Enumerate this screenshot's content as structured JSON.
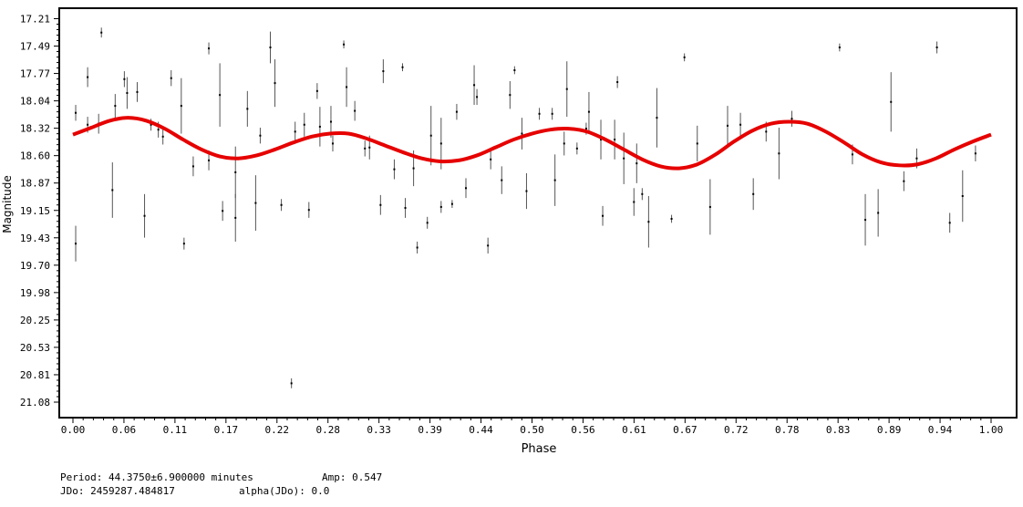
{
  "chart_data": {
    "type": "scatter",
    "xlabel": "Phase",
    "ylabel": "Magnitude",
    "xlim": [
      0.0,
      1.0
    ],
    "ylim": [
      17.21,
      21.08
    ],
    "y_inverted": true,
    "xticks": [
      "0.00",
      "0.06",
      "0.11",
      "0.17",
      "0.22",
      "0.28",
      "0.33",
      "0.39",
      "0.44",
      "0.50",
      "0.56",
      "0.61",
      "0.67",
      "0.72",
      "0.78",
      "0.83",
      "0.89",
      "0.94",
      "1.00"
    ],
    "yticks": [
      "17.21",
      "17.49",
      "17.77",
      "18.04",
      "18.32",
      "18.60",
      "18.87",
      "19.15",
      "19.43",
      "19.70",
      "19.98",
      "20.25",
      "20.53",
      "20.81",
      "21.08"
    ],
    "point_color": "#000000",
    "fit_color": "#e60000",
    "points": [
      {
        "x": 0.003,
        "y": 18.16,
        "err": 0.08
      },
      {
        "x": 0.003,
        "y": 19.48,
        "err": 0.18
      },
      {
        "x": 0.016,
        "y": 17.8,
        "err": 0.1
      },
      {
        "x": 0.016,
        "y": 18.28,
        "err": 0.08
      },
      {
        "x": 0.028,
        "y": 18.27,
        "err": 0.1
      },
      {
        "x": 0.031,
        "y": 17.35,
        "err": 0.05
      },
      {
        "x": 0.043,
        "y": 18.94,
        "err": 0.28
      },
      {
        "x": 0.046,
        "y": 18.09,
        "err": 0.12
      },
      {
        "x": 0.056,
        "y": 17.82,
        "err": 0.08
      },
      {
        "x": 0.059,
        "y": 17.96,
        "err": 0.16
      },
      {
        "x": 0.07,
        "y": 17.95,
        "err": 0.1
      },
      {
        "x": 0.078,
        "y": 19.2,
        "err": 0.22
      },
      {
        "x": 0.085,
        "y": 18.28,
        "err": 0.06
      },
      {
        "x": 0.093,
        "y": 18.33,
        "err": 0.08
      },
      {
        "x": 0.098,
        "y": 18.4,
        "err": 0.08
      },
      {
        "x": 0.107,
        "y": 17.81,
        "err": 0.08
      },
      {
        "x": 0.118,
        "y": 18.09,
        "err": 0.28
      },
      {
        "x": 0.121,
        "y": 19.48,
        "err": 0.06
      },
      {
        "x": 0.131,
        "y": 18.7,
        "err": 0.1
      },
      {
        "x": 0.148,
        "y": 17.51,
        "err": 0.06
      },
      {
        "x": 0.148,
        "y": 18.64,
        "err": 0.1
      },
      {
        "x": 0.16,
        "y": 17.98,
        "err": 0.32
      },
      {
        "x": 0.163,
        "y": 19.15,
        "err": 0.1
      },
      {
        "x": 0.177,
        "y": 18.76,
        "err": 0.26
      },
      {
        "x": 0.177,
        "y": 19.22,
        "err": 0.24
      },
      {
        "x": 0.19,
        "y": 18.12,
        "err": 0.18
      },
      {
        "x": 0.199,
        "y": 19.07,
        "err": 0.28
      },
      {
        "x": 0.204,
        "y": 18.39,
        "err": 0.08
      },
      {
        "x": 0.215,
        "y": 17.5,
        "err": 0.16
      },
      {
        "x": 0.22,
        "y": 17.86,
        "err": 0.24
      },
      {
        "x": 0.227,
        "y": 19.09,
        "err": 0.06
      },
      {
        "x": 0.238,
        "y": 20.89,
        "err": 0.05
      },
      {
        "x": 0.242,
        "y": 18.35,
        "err": 0.1
      },
      {
        "x": 0.252,
        "y": 18.28,
        "err": 0.12
      },
      {
        "x": 0.257,
        "y": 19.14,
        "err": 0.08
      },
      {
        "x": 0.266,
        "y": 17.94,
        "err": 0.08
      },
      {
        "x": 0.269,
        "y": 18.3,
        "err": 0.2
      },
      {
        "x": 0.281,
        "y": 18.25,
        "err": 0.16
      },
      {
        "x": 0.283,
        "y": 18.47,
        "err": 0.08
      },
      {
        "x": 0.295,
        "y": 17.47,
        "err": 0.04
      },
      {
        "x": 0.298,
        "y": 17.9,
        "err": 0.2
      },
      {
        "x": 0.307,
        "y": 18.14,
        "err": 0.1
      },
      {
        "x": 0.318,
        "y": 18.52,
        "err": 0.08
      },
      {
        "x": 0.323,
        "y": 18.51,
        "err": 0.12
      },
      {
        "x": 0.335,
        "y": 19.09,
        "err": 0.1
      },
      {
        "x": 0.338,
        "y": 17.74,
        "err": 0.12
      },
      {
        "x": 0.35,
        "y": 18.73,
        "err": 0.1
      },
      {
        "x": 0.359,
        "y": 17.7,
        "err": 0.04
      },
      {
        "x": 0.362,
        "y": 19.12,
        "err": 0.1
      },
      {
        "x": 0.371,
        "y": 18.72,
        "err": 0.18
      },
      {
        "x": 0.375,
        "y": 19.52,
        "err": 0.06
      },
      {
        "x": 0.386,
        "y": 19.27,
        "err": 0.06
      },
      {
        "x": 0.39,
        "y": 18.39,
        "err": 0.3
      },
      {
        "x": 0.401,
        "y": 18.47,
        "err": 0.26
      },
      {
        "x": 0.401,
        "y": 19.11,
        "err": 0.06
      },
      {
        "x": 0.413,
        "y": 19.08,
        "err": 0.04
      },
      {
        "x": 0.418,
        "y": 18.15,
        "err": 0.08
      },
      {
        "x": 0.428,
        "y": 18.92,
        "err": 0.1
      },
      {
        "x": 0.437,
        "y": 17.88,
        "err": 0.2
      },
      {
        "x": 0.44,
        "y": 18.0,
        "err": 0.08
      },
      {
        "x": 0.452,
        "y": 19.5,
        "err": 0.08
      },
      {
        "x": 0.455,
        "y": 18.63,
        "err": 0.1
      },
      {
        "x": 0.467,
        "y": 18.84,
        "err": 0.14
      },
      {
        "x": 0.476,
        "y": 17.98,
        "err": 0.14
      },
      {
        "x": 0.481,
        "y": 17.73,
        "err": 0.04
      },
      {
        "x": 0.489,
        "y": 18.37,
        "err": 0.16
      },
      {
        "x": 0.494,
        "y": 18.95,
        "err": 0.18
      },
      {
        "x": 0.508,
        "y": 18.17,
        "err": 0.06
      },
      {
        "x": 0.522,
        "y": 18.17,
        "err": 0.06
      },
      {
        "x": 0.525,
        "y": 18.84,
        "err": 0.26
      },
      {
        "x": 0.535,
        "y": 18.47,
        "err": 0.12
      },
      {
        "x": 0.538,
        "y": 17.92,
        "err": 0.28
      },
      {
        "x": 0.549,
        "y": 18.52,
        "err": 0.06
      },
      {
        "x": 0.559,
        "y": 18.32,
        "err": 0.06
      },
      {
        "x": 0.562,
        "y": 18.15,
        "err": 0.2
      },
      {
        "x": 0.575,
        "y": 18.43,
        "err": 0.2
      },
      {
        "x": 0.577,
        "y": 19.2,
        "err": 0.1
      },
      {
        "x": 0.59,
        "y": 18.43,
        "err": 0.2
      },
      {
        "x": 0.593,
        "y": 17.85,
        "err": 0.06
      },
      {
        "x": 0.6,
        "y": 18.62,
        "err": 0.26
      },
      {
        "x": 0.611,
        "y": 19.06,
        "err": 0.14
      },
      {
        "x": 0.614,
        "y": 18.67,
        "err": 0.2
      },
      {
        "x": 0.62,
        "y": 18.98,
        "err": 0.06
      },
      {
        "x": 0.627,
        "y": 19.26,
        "err": 0.26
      },
      {
        "x": 0.636,
        "y": 18.21,
        "err": 0.3
      },
      {
        "x": 0.652,
        "y": 19.23,
        "err": 0.04
      },
      {
        "x": 0.666,
        "y": 17.6,
        "err": 0.04
      },
      {
        "x": 0.68,
        "y": 18.47,
        "err": 0.18
      },
      {
        "x": 0.694,
        "y": 19.11,
        "err": 0.28
      },
      {
        "x": 0.713,
        "y": 18.29,
        "err": 0.2
      },
      {
        "x": 0.727,
        "y": 18.28,
        "err": 0.12
      },
      {
        "x": 0.741,
        "y": 18.98,
        "err": 0.16
      },
      {
        "x": 0.755,
        "y": 18.35,
        "err": 0.1
      },
      {
        "x": 0.769,
        "y": 18.57,
        "err": 0.26
      },
      {
        "x": 0.783,
        "y": 18.22,
        "err": 0.08
      },
      {
        "x": 0.835,
        "y": 17.5,
        "err": 0.04
      },
      {
        "x": 0.849,
        "y": 18.58,
        "err": 0.1
      },
      {
        "x": 0.863,
        "y": 19.24,
        "err": 0.26
      },
      {
        "x": 0.877,
        "y": 19.17,
        "err": 0.24
      },
      {
        "x": 0.891,
        "y": 18.05,
        "err": 0.3
      },
      {
        "x": 0.905,
        "y": 18.85,
        "err": 0.1
      },
      {
        "x": 0.919,
        "y": 18.62,
        "err": 0.1
      },
      {
        "x": 0.941,
        "y": 17.5,
        "err": 0.06
      },
      {
        "x": 0.955,
        "y": 19.27,
        "err": 0.1
      },
      {
        "x": 0.969,
        "y": 19.0,
        "err": 0.26
      },
      {
        "x": 0.983,
        "y": 18.57,
        "err": 0.08
      }
    ],
    "fit_curve": [
      {
        "x": 0.0,
        "y": 18.38
      },
      {
        "x": 0.02,
        "y": 18.31
      },
      {
        "x": 0.04,
        "y": 18.24
      },
      {
        "x": 0.06,
        "y": 18.21
      },
      {
        "x": 0.08,
        "y": 18.24
      },
      {
        "x": 0.1,
        "y": 18.32
      },
      {
        "x": 0.12,
        "y": 18.43
      },
      {
        "x": 0.14,
        "y": 18.53
      },
      {
        "x": 0.16,
        "y": 18.6
      },
      {
        "x": 0.18,
        "y": 18.62
      },
      {
        "x": 0.2,
        "y": 18.59
      },
      {
        "x": 0.22,
        "y": 18.53
      },
      {
        "x": 0.24,
        "y": 18.46
      },
      {
        "x": 0.26,
        "y": 18.4
      },
      {
        "x": 0.28,
        "y": 18.37
      },
      {
        "x": 0.3,
        "y": 18.37
      },
      {
        "x": 0.32,
        "y": 18.42
      },
      {
        "x": 0.34,
        "y": 18.49
      },
      {
        "x": 0.36,
        "y": 18.56
      },
      {
        "x": 0.38,
        "y": 18.62
      },
      {
        "x": 0.4,
        "y": 18.65
      },
      {
        "x": 0.42,
        "y": 18.64
      },
      {
        "x": 0.44,
        "y": 18.59
      },
      {
        "x": 0.46,
        "y": 18.51
      },
      {
        "x": 0.48,
        "y": 18.43
      },
      {
        "x": 0.5,
        "y": 18.37
      },
      {
        "x": 0.52,
        "y": 18.33
      },
      {
        "x": 0.54,
        "y": 18.32
      },
      {
        "x": 0.56,
        "y": 18.35
      },
      {
        "x": 0.58,
        "y": 18.43
      },
      {
        "x": 0.6,
        "y": 18.53
      },
      {
        "x": 0.62,
        "y": 18.63
      },
      {
        "x": 0.64,
        "y": 18.7
      },
      {
        "x": 0.66,
        "y": 18.72
      },
      {
        "x": 0.68,
        "y": 18.68
      },
      {
        "x": 0.7,
        "y": 18.58
      },
      {
        "x": 0.72,
        "y": 18.45
      },
      {
        "x": 0.74,
        "y": 18.34
      },
      {
        "x": 0.76,
        "y": 18.27
      },
      {
        "x": 0.78,
        "y": 18.25
      },
      {
        "x": 0.8,
        "y": 18.27
      },
      {
        "x": 0.82,
        "y": 18.35
      },
      {
        "x": 0.84,
        "y": 18.46
      },
      {
        "x": 0.86,
        "y": 18.58
      },
      {
        "x": 0.88,
        "y": 18.66
      },
      {
        "x": 0.9,
        "y": 18.69
      },
      {
        "x": 0.92,
        "y": 18.68
      },
      {
        "x": 0.94,
        "y": 18.62
      },
      {
        "x": 0.96,
        "y": 18.53
      },
      {
        "x": 0.98,
        "y": 18.45
      },
      {
        "x": 1.0,
        "y": 18.38
      }
    ]
  },
  "info": {
    "period": "Period: 44.3750±6.900000 minutes",
    "amp": "Amp: 0.547",
    "jdo": "JDo: 2459287.484817",
    "alpha": "alpha(JDo): 0.0"
  }
}
